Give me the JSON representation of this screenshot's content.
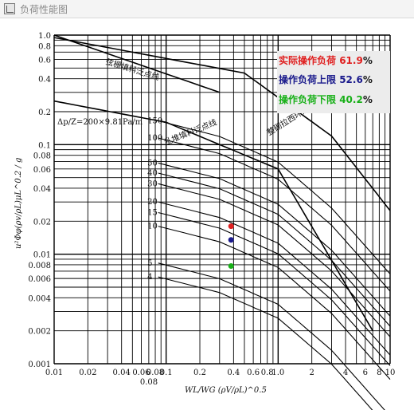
{
  "window": {
    "title": "负荷性能图",
    "icon": "chart-window-icon"
  },
  "legend": {
    "actual": {
      "label": "实际操作负荷",
      "value": "61.9",
      "unit": "%",
      "color": "#e02020"
    },
    "upper": {
      "label": "操作负荷上限",
      "value": "52.6",
      "unit": "%",
      "color": "#1a1a8c"
    },
    "lower": {
      "label": "操作负荷下限",
      "value": "40.2",
      "unit": "%",
      "color": "#18b018"
    }
  },
  "chart_data": {
    "type": "line",
    "xscale": "log",
    "yscale": "log",
    "xlim": [
      0.01,
      10
    ],
    "ylim": [
      0.001,
      1.0
    ],
    "grid": true,
    "x_ticks": [
      "0.01",
      "0.02",
      "0.04",
      "0.06",
      "0.08",
      "0.1",
      "0.2",
      "0.4",
      "0.6",
      "0.8",
      "1.0",
      "2",
      "4",
      "6",
      "8",
      "10"
    ],
    "x_ticks_extra": [
      "0.08"
    ],
    "y_ticks": [
      "1.0",
      "0.8",
      "0.6",
      "0.4",
      "0.2",
      "0.1",
      "0.08",
      "0.06",
      "0.04",
      "0.02",
      "0.01",
      "0.008",
      "0.006",
      "0.004",
      "0.002",
      "0.001"
    ],
    "flood_lines": [
      {
        "name": "弦栅填料泛点线",
        "x": [
          0.01,
          0.3
        ],
        "y": [
          1.0,
          0.3
        ]
      },
      {
        "name": "乱堆填料泛点线",
        "x": [
          0.01,
          0.1,
          1.0,
          7
        ],
        "y": [
          0.25,
          0.16,
          0.06,
          0.002
        ]
      },
      {
        "name": "整砌拉西环泛点线",
        "x": [
          0.01,
          0.5,
          3,
          10
        ],
        "y": [
          0.95,
          0.45,
          0.12,
          0.025
        ]
      }
    ],
    "pressure_drop_label": "Δp/Z=200×9.81Pa/m",
    "pressure_drop_curves": [
      "150",
      "100",
      "50",
      "40",
      "30",
      "20",
      "15",
      "10",
      "5",
      "4"
    ],
    "points": [
      {
        "series": "实际操作负荷",
        "x": 0.38,
        "y": 0.018,
        "color": "#e02020"
      },
      {
        "series": "操作负荷上限",
        "x": 0.38,
        "y": 0.0135,
        "color": "#1a1a8c"
      },
      {
        "series": "操作负荷下限",
        "x": 0.38,
        "y": 0.0078,
        "color": "#18b018"
      }
    ]
  }
}
